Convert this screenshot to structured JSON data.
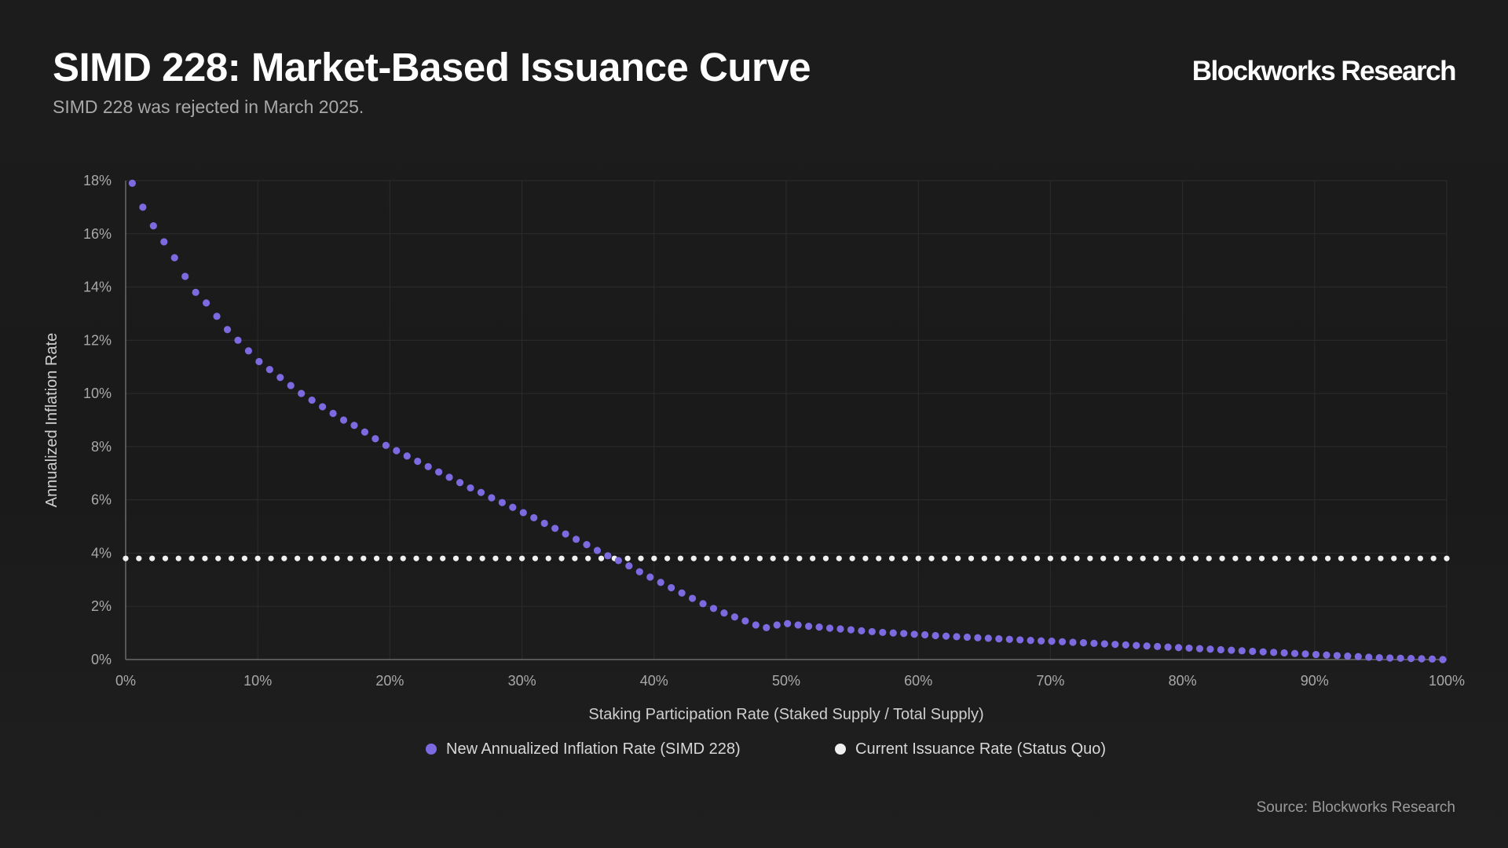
{
  "header": {
    "title": "SIMD 228: Market-Based Issuance Curve",
    "subtitle": "SIMD 228 was rejected in March 2025.",
    "brand": "Blockworks Research"
  },
  "footer": {
    "source": "Source: Blockworks Research"
  },
  "colors": {
    "background": "#1b1b1b",
    "simd": "#7b6ae0",
    "status_quo": "#f0f0f0",
    "grid": "#2c2c2c",
    "axis": "#6a6a6a"
  },
  "chart_data": {
    "type": "scatter",
    "xlabel": "Staking Participation Rate (Staked Supply / Total Supply)",
    "ylabel": "Annualized Inflation Rate",
    "xlim": [
      0,
      100
    ],
    "ylim": [
      0,
      18
    ],
    "x_ticks": [
      0,
      10,
      20,
      30,
      40,
      50,
      60,
      70,
      80,
      90,
      100
    ],
    "x_tick_labels": [
      "0%",
      "10%",
      "20%",
      "30%",
      "40%",
      "50%",
      "60%",
      "70%",
      "80%",
      "90%",
      "100%"
    ],
    "y_ticks": [
      0,
      2,
      4,
      6,
      8,
      10,
      12,
      14,
      16,
      18
    ],
    "y_tick_labels": [
      "0%",
      "2%",
      "4%",
      "6%",
      "8%",
      "10%",
      "12%",
      "14%",
      "16%",
      "18%"
    ],
    "grid": true,
    "legend_position": "bottom-center",
    "series": [
      {
        "name": "New Annualized Inflation Rate (SIMD 228)",
        "color": "#7b6ae0",
        "x_start": 0.5,
        "x_step": 0.8,
        "x_end": 99.7,
        "curve_description": "piecewise decay",
        "anchor_points": [
          [
            0.5,
            17.9
          ],
          [
            1.3,
            17.0
          ],
          [
            2.1,
            16.3
          ],
          [
            2.9,
            15.7
          ],
          [
            3.7,
            15.1
          ],
          [
            4.5,
            14.4
          ],
          [
            5.3,
            13.8
          ],
          [
            6.1,
            13.4
          ],
          [
            6.9,
            12.9
          ],
          [
            7.7,
            12.4
          ],
          [
            8.5,
            12.0
          ],
          [
            9.3,
            11.6
          ],
          [
            10.1,
            11.2
          ],
          [
            10.9,
            10.9
          ],
          [
            11.7,
            10.6
          ],
          [
            12.5,
            10.3
          ],
          [
            13.3,
            10.0
          ],
          [
            14.1,
            9.75
          ],
          [
            14.9,
            9.5
          ],
          [
            15.7,
            9.25
          ],
          [
            16.5,
            9.0
          ],
          [
            17.3,
            8.8
          ],
          [
            18.1,
            8.55
          ],
          [
            18.9,
            8.3
          ],
          [
            19.7,
            8.05
          ],
          [
            20.5,
            7.85
          ],
          [
            21.3,
            7.65
          ],
          [
            22.1,
            7.45
          ],
          [
            22.9,
            7.25
          ],
          [
            23.7,
            7.05
          ],
          [
            24.5,
            6.85
          ],
          [
            25.3,
            6.65
          ],
          [
            26.1,
            6.45
          ],
          [
            26.9,
            6.28
          ],
          [
            27.7,
            6.08
          ],
          [
            28.5,
            5.9
          ],
          [
            29.3,
            5.72
          ],
          [
            30.1,
            5.52
          ],
          [
            30.9,
            5.33
          ],
          [
            31.7,
            5.12
          ],
          [
            32.5,
            4.93
          ],
          [
            33.3,
            4.72
          ],
          [
            34.1,
            4.52
          ],
          [
            34.9,
            4.32
          ],
          [
            35.7,
            4.1
          ],
          [
            36.5,
            3.9
          ],
          [
            37.3,
            3.72
          ],
          [
            38.1,
            3.52
          ],
          [
            38.9,
            3.3
          ],
          [
            39.7,
            3.1
          ],
          [
            40.5,
            2.9
          ],
          [
            41.3,
            2.7
          ],
          [
            42.1,
            2.5
          ],
          [
            42.9,
            2.3
          ],
          [
            43.7,
            2.1
          ],
          [
            44.5,
            1.92
          ],
          [
            45.3,
            1.75
          ],
          [
            46.1,
            1.6
          ],
          [
            46.9,
            1.45
          ],
          [
            47.7,
            1.3
          ],
          [
            48.5,
            1.2
          ],
          [
            49.3,
            1.3
          ],
          [
            50.1,
            1.35
          ],
          [
            50.9,
            1.3
          ],
          [
            51.7,
            1.25
          ],
          [
            52.5,
            1.22
          ],
          [
            53.3,
            1.18
          ],
          [
            54.1,
            1.15
          ],
          [
            54.9,
            1.12
          ],
          [
            55.7,
            1.08
          ],
          [
            56.5,
            1.05
          ],
          [
            57.3,
            1.02
          ],
          [
            58.1,
            1.0
          ],
          [
            58.9,
            0.98
          ],
          [
            59.7,
            0.95
          ],
          [
            60.5,
            0.93
          ],
          [
            61.3,
            0.9
          ],
          [
            62.1,
            0.88
          ],
          [
            62.9,
            0.86
          ],
          [
            63.7,
            0.84
          ],
          [
            64.5,
            0.82
          ],
          [
            65.3,
            0.8
          ],
          [
            66.1,
            0.78
          ],
          [
            66.9,
            0.76
          ],
          [
            67.7,
            0.74
          ],
          [
            68.5,
            0.72
          ],
          [
            69.3,
            0.7
          ],
          [
            70.1,
            0.69
          ],
          [
            70.9,
            0.67
          ],
          [
            71.7,
            0.65
          ],
          [
            72.5,
            0.63
          ],
          [
            73.3,
            0.61
          ],
          [
            74.1,
            0.59
          ],
          [
            74.9,
            0.57
          ],
          [
            75.7,
            0.55
          ],
          [
            76.5,
            0.53
          ],
          [
            77.3,
            0.51
          ],
          [
            78.1,
            0.49
          ],
          [
            78.9,
            0.47
          ],
          [
            79.7,
            0.45
          ],
          [
            80.5,
            0.43
          ],
          [
            81.3,
            0.41
          ],
          [
            82.1,
            0.39
          ],
          [
            82.9,
            0.37
          ],
          [
            83.7,
            0.35
          ],
          [
            84.5,
            0.33
          ],
          [
            85.3,
            0.31
          ],
          [
            86.1,
            0.29
          ],
          [
            86.9,
            0.27
          ],
          [
            87.7,
            0.25
          ],
          [
            88.5,
            0.23
          ],
          [
            89.3,
            0.21
          ],
          [
            90.1,
            0.19
          ],
          [
            90.9,
            0.17
          ],
          [
            91.7,
            0.15
          ],
          [
            92.5,
            0.13
          ],
          [
            93.3,
            0.11
          ],
          [
            94.1,
            0.09
          ],
          [
            94.9,
            0.07
          ],
          [
            95.7,
            0.06
          ],
          [
            96.5,
            0.05
          ],
          [
            97.3,
            0.04
          ],
          [
            98.1,
            0.03
          ],
          [
            98.9,
            0.02
          ],
          [
            99.7,
            0.0
          ]
        ]
      },
      {
        "name": "Current Issuance Rate (Status Quo)",
        "color": "#f0f0f0",
        "x_start": 0,
        "x_step": 1.0,
        "x_end": 100,
        "constant_value": 3.8
      }
    ]
  }
}
